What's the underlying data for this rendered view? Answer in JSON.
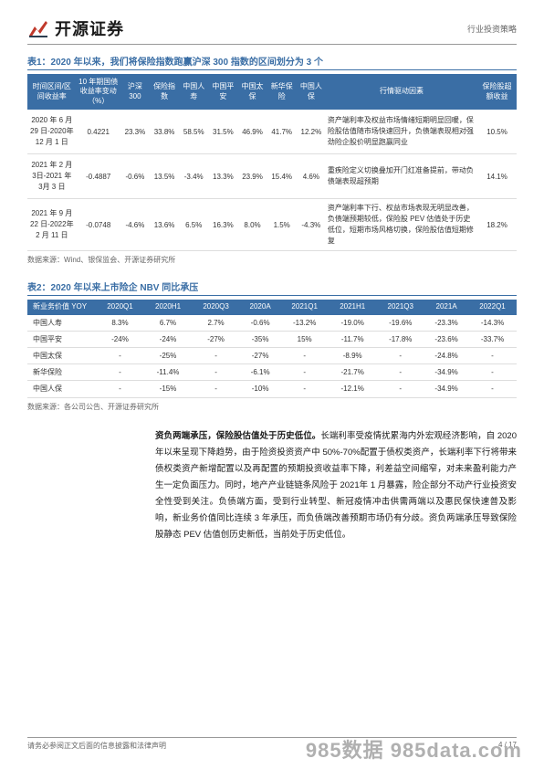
{
  "header": {
    "brand": "开源证券",
    "category": "行业投资策略",
    "logo_colors": {
      "red": "#c0392b",
      "dark": "#2c3e50"
    }
  },
  "table1": {
    "title": "表1：2020 年以来，我们将保险指数跑赢沪深 300 指数的区间划分为 3 个",
    "headers": [
      "时间区间/区间收益率",
      "10 年期国债收益率变动（%）",
      "沪深300",
      "保险指数",
      "中国人寿",
      "中国平安",
      "中国太保",
      "新华保险",
      "中国人保",
      "行情驱动因素",
      "保险股超额收益"
    ],
    "rows": [
      {
        "period": "2020 年 6 月29 日-2020年 12 月 1 日",
        "bond": "0.4221",
        "vals": [
          "23.3%",
          "33.8%",
          "58.5%",
          "31.5%",
          "46.9%",
          "41.7%",
          "12.2%"
        ],
        "driver": "资产端利率及权益市场情绪短期明显回暖，保险股估值随市场快速回升，负债端表现相对强劲险企股价明显跑赢同业",
        "excess": "10.5%"
      },
      {
        "period": "2021 年 2 月 3日-2021 年 3月 3 日",
        "bond": "-0.4887",
        "vals": [
          "-0.6%",
          "13.5%",
          "-3.4%",
          "13.3%",
          "23.9%",
          "15.4%",
          "4.6%"
        ],
        "driver": "重疾险定义切换叠加开门红准备提前，带动负债端表现超预期",
        "excess": "14.1%"
      },
      {
        "period": "2021 年 9 月22 日-2022年 2 月 11 日",
        "bond": "-0.0748",
        "vals": [
          "-4.6%",
          "13.6%",
          "6.5%",
          "16.3%",
          "8.0%",
          "1.5%",
          "-4.3%"
        ],
        "driver": "资产端利率下行、权益市场表现无明显改善，负债端预期较低，保险股 PEV 估值处于历史低位，短期市场风格切换，保险股估值短期修复",
        "excess": "18.2%"
      }
    ],
    "source": "数据来源：Wind、银保监会、开源证券研究所",
    "header_bg": "#3a6ea5",
    "header_fg": "#ffffff"
  },
  "table2": {
    "title": "表2：2020 年以来上市险企 NBV 同比承压",
    "headers": [
      "新业务价值 YOY",
      "2020Q1",
      "2020H1",
      "2020Q3",
      "2020A",
      "2021Q1",
      "2021H1",
      "2021Q3",
      "2021A",
      "2022Q1"
    ],
    "rows": [
      {
        "name": "中国人寿",
        "vals": [
          "8.3%",
          "6.7%",
          "2.7%",
          "-0.6%",
          "-13.2%",
          "-19.0%",
          "-19.6%",
          "-23.3%",
          "-14.3%"
        ]
      },
      {
        "name": "中国平安",
        "vals": [
          "-24%",
          "-24%",
          "-27%",
          "-35%",
          "15%",
          "-11.7%",
          "-17.8%",
          "-23.6%",
          "-33.7%"
        ]
      },
      {
        "name": "中国太保",
        "vals": [
          "-",
          "-25%",
          "-",
          "-27%",
          "-",
          "-8.9%",
          "-",
          "-24.8%",
          "-"
        ]
      },
      {
        "name": "新华保险",
        "vals": [
          "-",
          "-11.4%",
          "-",
          "-6.1%",
          "-",
          "-21.7%",
          "-",
          "-34.9%",
          "-"
        ]
      },
      {
        "name": "中国人保",
        "vals": [
          "-",
          "-15%",
          "-",
          "-10%",
          "-",
          "-12.1%",
          "-",
          "-34.9%",
          "-"
        ]
      }
    ],
    "source": "数据来源：各公司公告、开源证券研究所",
    "header_bg": "#3a6ea5",
    "header_fg": "#ffffff"
  },
  "paragraph": {
    "bold_lead": "资负两端承压，保险股估值处于历史低位。",
    "rest": "长端利率受疫情扰累海内外宏观经济影响，自 2020 年以来呈现下降趋势，由于险资投资资产中 50%-70%配置于债权类资产，长端利率下行将带来债权类资产新增配置以及再配置的预期投资收益率下降，利差益空间缩窄，对未来盈利能力产生一定负面压力。同时，地产产业链链条风险于 2021年 1 月暴露，险企部分不动产行业投资安全性受到关注。负债端方面，受到行业转型、新冠疫情冲击供需两端以及惠民保快速普及影响，新业务价值同比连续 3 年承压，而负债端改善预期市场仍有分歧。资负两端承压导致保险股静态 PEV 估值创历史新低，当前处于历史低位。"
  },
  "footer": {
    "disclaimer": "请务必参阅正文后面的信息披露和法律声明",
    "page": "4 / 17"
  },
  "watermark": "985数据  985data.com"
}
